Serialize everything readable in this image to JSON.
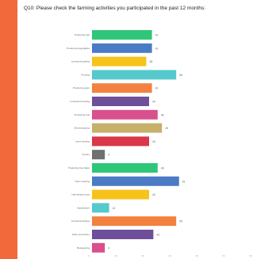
{
  "chart_data": {
    "type": "bar",
    "orientation": "horizontal",
    "title": "Q10: Please check the farming activities you participated in the past 12 months:",
    "xlabel": "",
    "ylabel": "",
    "xlim": [
      0,
      100
    ],
    "x_ticks": [
      "0",
      "10",
      "20",
      "30",
      "40",
      "50",
      "60"
    ],
    "grid": false,
    "legend": "none",
    "categories": [
      "Producing hay",
      "Producing vegetables",
      "Livestock grazing",
      "Fencing",
      "Producing grain",
      "Livestock breeding",
      "Producing fruit",
      "Sharecropping",
      "Land clearing",
      "Poultry",
      "Producing hay bales",
      "Row cropping",
      "Harvesting crops",
      "Aquaculture",
      "Livestock feeding",
      "Dairy production",
      "Beekeeping"
    ],
    "values": [
      42,
      42,
      38,
      59,
      42,
      40,
      46,
      49,
      40,
      9,
      46,
      61,
      40,
      12,
      59,
      43,
      9
    ],
    "colors": [
      "#2ec77a",
      "#4a7bc4",
      "#f7c21a",
      "#55c9cc",
      "#f3813f",
      "#6e4f9a",
      "#d8508c",
      "#c6b06a",
      "#d9374a",
      "#707070",
      "#2ec77a",
      "#4a7bc4",
      "#f7c21a",
      "#55c9cc",
      "#f3813f",
      "#6e4f9a",
      "#d8508c"
    ]
  }
}
